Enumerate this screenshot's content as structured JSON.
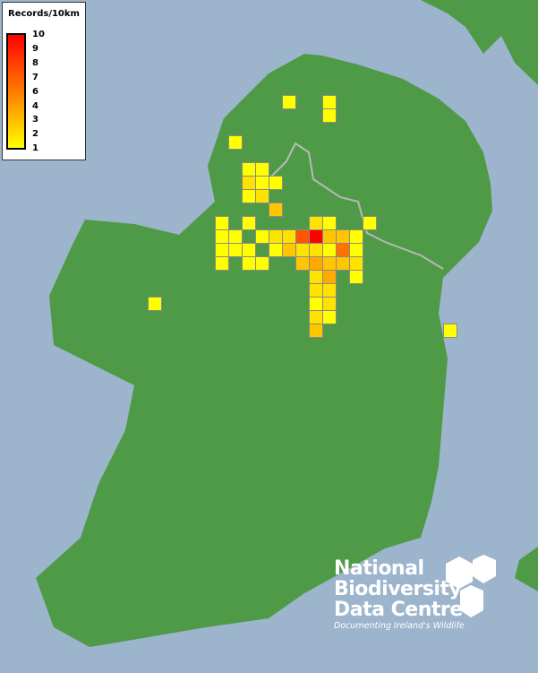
{
  "legend": {
    "title": "Records/10km",
    "ticks": [
      "10",
      "9",
      "8",
      "7",
      "6",
      "4",
      "3",
      "2",
      "1"
    ],
    "color_min": "#ffff00",
    "color_max": "#ff0000"
  },
  "colors": {
    "sea": "#9db4cd",
    "land": "#4f9a46",
    "border": "#b8b8b8"
  },
  "records": [
    {
      "c": 5,
      "r": -5,
      "v": 1
    },
    {
      "c": 8,
      "r": -5,
      "v": 1
    },
    {
      "c": 8,
      "r": -4,
      "v": 1
    },
    {
      "c": 1,
      "r": -2,
      "v": 1
    },
    {
      "c": 2,
      "r": 0,
      "v": 1
    },
    {
      "c": 3,
      "r": 0,
      "v": 1
    },
    {
      "c": 2,
      "r": 1,
      "v": 2
    },
    {
      "c": 3,
      "r": 1,
      "v": 1
    },
    {
      "c": 4,
      "r": 1,
      "v": 1
    },
    {
      "c": 2,
      "r": 2,
      "v": 1
    },
    {
      "c": 3,
      "r": 2,
      "v": 2
    },
    {
      "c": 4,
      "r": 3,
      "v": 3
    },
    {
      "c": 0,
      "r": 4,
      "v": 1
    },
    {
      "c": 2,
      "r": 4,
      "v": 1
    },
    {
      "c": 7,
      "r": 4,
      "v": 2
    },
    {
      "c": 8,
      "r": 4,
      "v": 1
    },
    {
      "c": 11,
      "r": 4,
      "v": 1
    },
    {
      "c": 0,
      "r": 5,
      "v": 1
    },
    {
      "c": 1,
      "r": 5,
      "v": 1
    },
    {
      "c": 3,
      "r": 5,
      "v": 1
    },
    {
      "c": 4,
      "r": 5,
      "v": 2
    },
    {
      "c": 5,
      "r": 5,
      "v": 2
    },
    {
      "c": 6,
      "r": 5,
      "v": 7
    },
    {
      "c": 7,
      "r": 5,
      "v": 10
    },
    {
      "c": 8,
      "r": 5,
      "v": 3
    },
    {
      "c": 9,
      "r": 5,
      "v": 3
    },
    {
      "c": 10,
      "r": 5,
      "v": 1
    },
    {
      "c": 0,
      "r": 6,
      "v": 1
    },
    {
      "c": 1,
      "r": 6,
      "v": 1
    },
    {
      "c": 2,
      "r": 6,
      "v": 1
    },
    {
      "c": 4,
      "r": 6,
      "v": 1
    },
    {
      "c": 5,
      "r": 6,
      "v": 3
    },
    {
      "c": 6,
      "r": 6,
      "v": 2
    },
    {
      "c": 7,
      "r": 6,
      "v": 2
    },
    {
      "c": 8,
      "r": 6,
      "v": 1
    },
    {
      "c": 9,
      "r": 6,
      "v": 6
    },
    {
      "c": 10,
      "r": 6,
      "v": 1
    },
    {
      "c": 0,
      "r": 7,
      "v": 1
    },
    {
      "c": 2,
      "r": 7,
      "v": 1
    },
    {
      "c": 3,
      "r": 7,
      "v": 1
    },
    {
      "c": 6,
      "r": 7,
      "v": 3
    },
    {
      "c": 7,
      "r": 7,
      "v": 4
    },
    {
      "c": 8,
      "r": 7,
      "v": 3
    },
    {
      "c": 9,
      "r": 7,
      "v": 3
    },
    {
      "c": 10,
      "r": 7,
      "v": 2
    },
    {
      "c": 7,
      "r": 8,
      "v": 2
    },
    {
      "c": 8,
      "r": 8,
      "v": 4
    },
    {
      "c": 10,
      "r": 8,
      "v": 1
    },
    {
      "c": 7,
      "r": 9,
      "v": 2
    },
    {
      "c": 8,
      "r": 9,
      "v": 2
    },
    {
      "c": 7,
      "r": 10,
      "v": 1
    },
    {
      "c": 8,
      "r": 10,
      "v": 2
    },
    {
      "c": 7,
      "r": 11,
      "v": 2
    },
    {
      "c": 8,
      "r": 11,
      "v": 1
    },
    {
      "c": 7,
      "r": 12,
      "v": 3
    },
    {
      "c": -5,
      "r": 10,
      "v": 1
    },
    {
      "c": 17,
      "r": 12,
      "v": 1
    }
  ],
  "logo": {
    "lines": [
      "National",
      "Biodiversity",
      "Data Centre"
    ],
    "tagline": "Documenting Ireland's Wildlife"
  }
}
